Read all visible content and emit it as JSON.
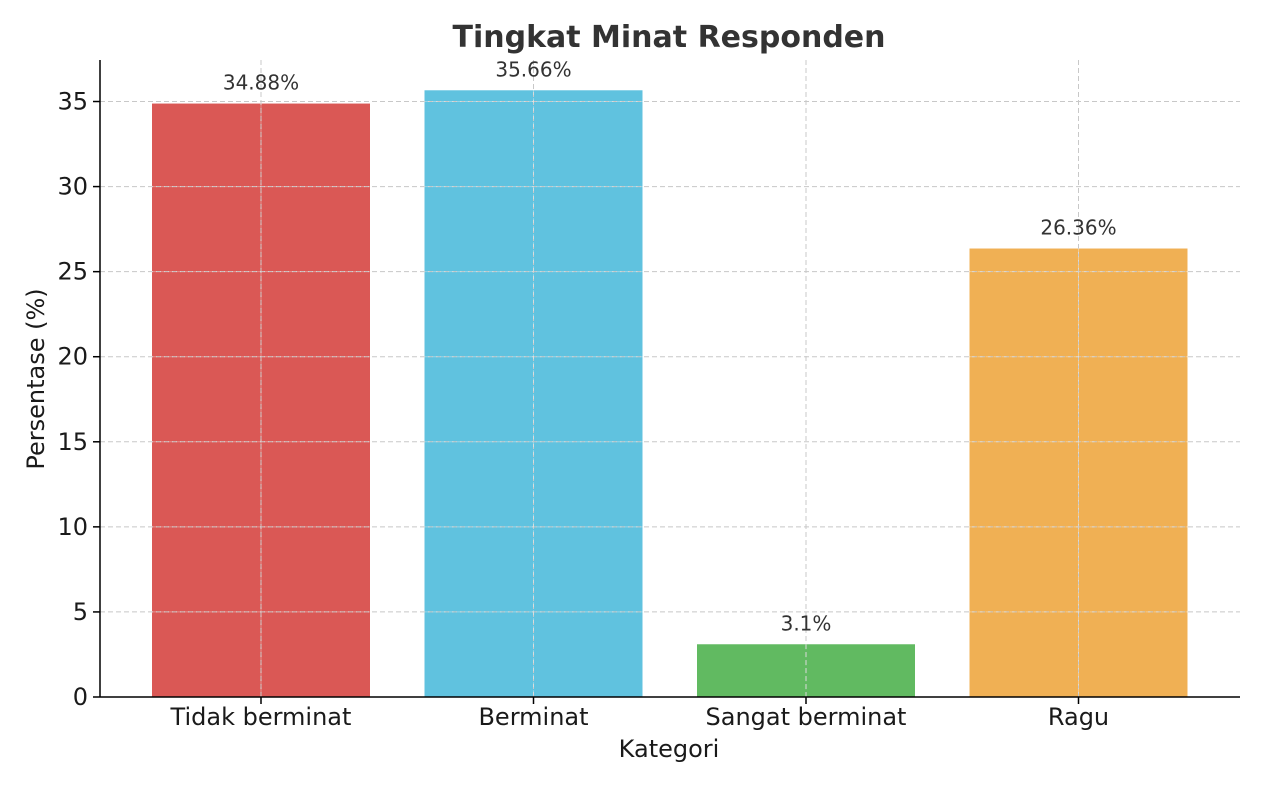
{
  "chart_data": {
    "type": "bar",
    "title": "Tingkat Minat Responden",
    "xlabel": "Kategori",
    "ylabel": "Persentase (%)",
    "categories": [
      "Tidak berminat",
      "Berminat",
      "Sangat berminat",
      "Ragu"
    ],
    "values": [
      34.88,
      35.66,
      3.1,
      26.36
    ],
    "data_labels": [
      "34.88%",
      "35.66%",
      "3.1%",
      "26.36%"
    ],
    "colors": [
      "#d9534f",
      "#5bc0de",
      "#5cb85c",
      "#f0ad4e"
    ],
    "ylim": [
      0,
      37.44
    ],
    "yticks": [
      0,
      5,
      10,
      15,
      20,
      25,
      30,
      35
    ],
    "grid": true
  }
}
